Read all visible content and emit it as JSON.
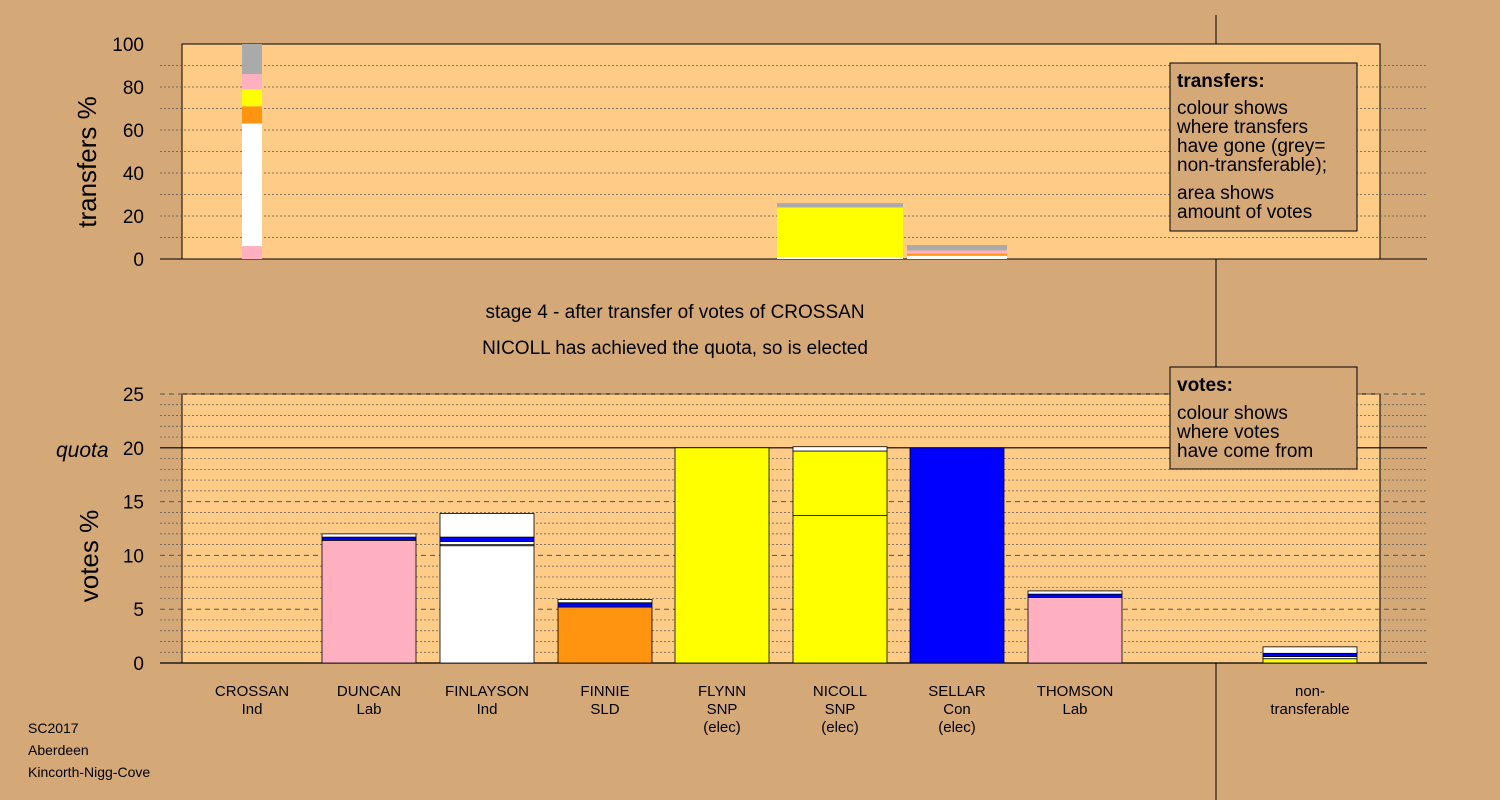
{
  "captions": {
    "stage": "stage 4 - after transfer of votes of CROSSAN",
    "elected": "NICOLL has achieved the quota, so is elected"
  },
  "footer": [
    "SC2017",
    "Aberdeen",
    "Kincorth-Nigg-Cove"
  ],
  "legend_transfers": {
    "title": "transfers:",
    "lines1": [
      "colour shows",
      "where transfers",
      "have gone (grey=",
      "non-transferable);"
    ],
    "lines2": [
      "area shows",
      "amount of votes"
    ]
  },
  "legend_votes": {
    "title": "votes:",
    "lines": [
      "colour shows",
      "where votes",
      "have come from"
    ]
  },
  "colors": {
    "background": "#d4a877",
    "plot": "#ffcc88",
    "Ind": "#ffffff",
    "Lab": "#ffb0c0",
    "SLD": "#ff9411",
    "SNP": "#ffff00",
    "Con": "#0000ff",
    "nontransferable": "#aaaaaa"
  },
  "chart_data": [
    {
      "type": "bar",
      "stacked": true,
      "ylabel": "transfers %",
      "ylim": [
        0,
        100
      ],
      "yticks": [
        0,
        20,
        40,
        60,
        80,
        100
      ],
      "grid": true,
      "bars": [
        {
          "candidate": "CROSSAN",
          "segments": [
            {
              "to": "DUNCAN",
              "party": "Lab",
              "value": 6
            },
            {
              "to": "FINLAYSON",
              "party": "Ind",
              "value": 57
            },
            {
              "to": "FINNIE",
              "party": "SLD",
              "value": 8
            },
            {
              "to": "FLYNN",
              "party": "SNP",
              "value": 1
            },
            {
              "to": "NICOLL",
              "party": "SNP",
              "value": 7
            },
            {
              "to": "THOMSON",
              "party": "Lab",
              "value": 7
            },
            {
              "to": "non-transferable",
              "party": "nontransferable",
              "value": 14
            }
          ]
        },
        {
          "candidate": "NICOLL",
          "segments": [
            {
              "to": "FINLAYSON",
              "party": "Ind",
              "value": 1
            },
            {
              "to": "NICOLL",
              "party": "SNP",
              "value": 23
            },
            {
              "to": "non-transferable",
              "party": "nontransferable",
              "value": 2
            }
          ]
        },
        {
          "candidate": "SELLAR",
          "segments": [
            {
              "to": "FINLAYSON",
              "party": "Ind",
              "value": 1.5
            },
            {
              "to": "FINNIE",
              "party": "SLD",
              "value": 1
            },
            {
              "to": "THOMSON",
              "party": "Lab",
              "value": 1.5
            },
            {
              "to": "non-transferable",
              "party": "nontransferable",
              "value": 2.5
            }
          ]
        }
      ]
    },
    {
      "type": "bar",
      "stacked": true,
      "ylabel": "votes %",
      "ylim": [
        0,
        25
      ],
      "yticks": [
        0,
        5,
        10,
        15,
        20,
        25
      ],
      "quota": 20,
      "quota_label": "quota",
      "grid": true,
      "categories": [
        {
          "name": "CROSSAN",
          "party": "Ind",
          "status": ""
        },
        {
          "name": "DUNCAN",
          "party": "Lab",
          "status": ""
        },
        {
          "name": "FINLAYSON",
          "party": "Ind",
          "status": ""
        },
        {
          "name": "FINNIE",
          "party": "SLD",
          "status": ""
        },
        {
          "name": "FLYNN",
          "party": "SNP",
          "status": "(elec)"
        },
        {
          "name": "NICOLL",
          "party": "SNP",
          "status": "(elec)"
        },
        {
          "name": "SELLAR",
          "party": "Con",
          "status": "(elec)"
        },
        {
          "name": "THOMSON",
          "party": "Lab",
          "status": ""
        },
        {
          "name": "non-",
          "party": "transferable",
          "status": ""
        }
      ],
      "bars": [
        {
          "candidate": "CROSSAN",
          "segments": []
        },
        {
          "candidate": "DUNCAN",
          "segments": [
            {
              "party": "Lab",
              "value": 11.4
            },
            {
              "party": "Con",
              "value": 0.3
            },
            {
              "party": "Ind",
              "value": 0.3
            }
          ]
        },
        {
          "candidate": "FINLAYSON",
          "segments": [
            {
              "party": "Ind",
              "value": 10.9
            },
            {
              "party": "SNP",
              "value": 0.1
            },
            {
              "party": "Ind",
              "value": 0.3
            },
            {
              "party": "Con",
              "value": 0.4
            },
            {
              "party": "Ind",
              "value": 2.2
            }
          ]
        },
        {
          "candidate": "FINNIE",
          "segments": [
            {
              "party": "SLD",
              "value": 5.2
            },
            {
              "party": "Con",
              "value": 0.4
            },
            {
              "party": "Ind",
              "value": 0.3
            }
          ]
        },
        {
          "candidate": "FLYNN",
          "segments": [
            {
              "party": "SNP",
              "value": 20
            }
          ]
        },
        {
          "candidate": "NICOLL",
          "segments": [
            {
              "party": "SNP",
              "value": 13.7
            },
            {
              "party": "SNP",
              "value": 6.0
            },
            {
              "party": "Ind",
              "value": 0.4
            }
          ]
        },
        {
          "candidate": "SELLAR",
          "segments": [
            {
              "party": "Con",
              "value": 20
            }
          ]
        },
        {
          "candidate": "THOMSON",
          "segments": [
            {
              "party": "Lab",
              "value": 6.1
            },
            {
              "party": "Con",
              "value": 0.3
            },
            {
              "party": "Ind",
              "value": 0.3
            }
          ]
        },
        {
          "candidate": "non-transferable",
          "segments": [
            {
              "party": "SNP",
              "value": 0.4
            },
            {
              "party": "Ind",
              "value": 0.2
            },
            {
              "party": "Con",
              "value": 0.3
            },
            {
              "party": "Ind",
              "value": 0.6
            }
          ]
        }
      ]
    }
  ]
}
